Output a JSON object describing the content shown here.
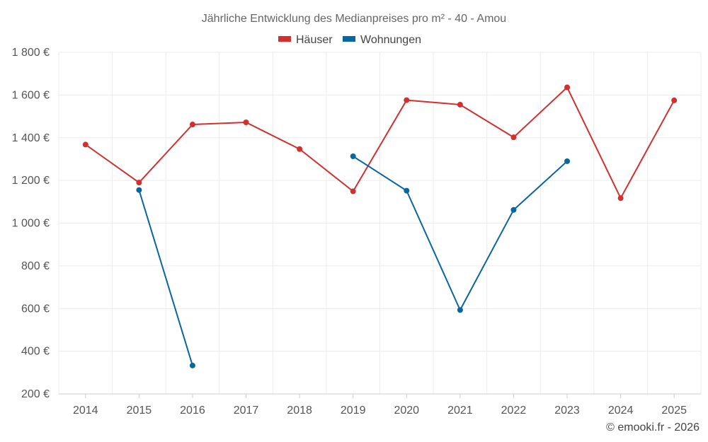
{
  "chart_data": {
    "type": "line",
    "title": "Jährliche Entwicklung des Medianpreises pro m² - 40 - Amou",
    "categories": [
      "2014",
      "2015",
      "2016",
      "2017",
      "2018",
      "2019",
      "2020",
      "2021",
      "2022",
      "2023",
      "2024",
      "2025"
    ],
    "series": [
      {
        "name": "Häuser",
        "color": "#d32f2f",
        "values": [
          1368,
          1190,
          1462,
          1472,
          1347,
          1149,
          1576,
          1555,
          1402,
          1636,
          1117,
          1575
        ]
      },
      {
        "name": "Wohnungen",
        "color": "#0a66a0",
        "values": [
          null,
          1155,
          333,
          null,
          null,
          1313,
          1152,
          593,
          1062,
          1290,
          null,
          null
        ]
      }
    ],
    "ylim": [
      200,
      1800
    ],
    "yticks": [
      200,
      400,
      600,
      800,
      1000,
      1200,
      1400,
      1600,
      1800
    ],
    "ytick_labels": [
      "200 €",
      "400 €",
      "600 €",
      "800 €",
      "1 000 €",
      "1 200 €",
      "1 400 €",
      "1 600 €",
      "1 800 €"
    ],
    "xlabel": "",
    "ylabel": "",
    "grid": true,
    "legend": "top-center"
  },
  "credit": "© emooki.fr - 2026"
}
